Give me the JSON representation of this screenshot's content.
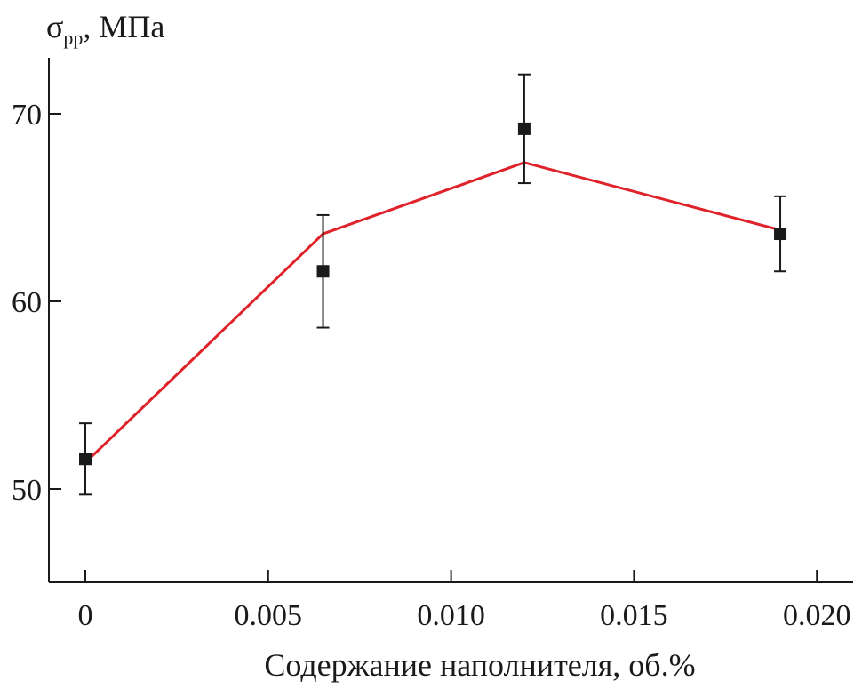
{
  "chart_data": {
    "type": "scatter",
    "ylabel_main": "σ",
    "ylabel_sub": "рр",
    "ylabel_unit": ", МПа",
    "xlabel": "Содержание наполнителя, об.%",
    "xlim": [
      -0.001,
      0.0205
    ],
    "ylim": [
      45,
      73
    ],
    "x_ticks": [
      0,
      0.005,
      0.01,
      0.015,
      0.02
    ],
    "x_tick_labels": [
      "0",
      "0.005",
      "0.010",
      "0.015",
      "0.020"
    ],
    "y_ticks": [
      50,
      60,
      70
    ],
    "y_tick_labels": [
      "50",
      "60",
      "70"
    ],
    "grid": false,
    "series": [
      {
        "kind": "markers",
        "marker": "square",
        "color": "#1a1a1a",
        "x": [
          0,
          0.0065,
          0.012,
          0.019
        ],
        "y": [
          51.6,
          61.6,
          69.2,
          63.6
        ],
        "err_low": [
          49.7,
          58.6,
          66.3,
          61.6
        ],
        "err_high": [
          53.5,
          64.6,
          72.1,
          65.6
        ]
      },
      {
        "kind": "line",
        "color": "#e0222a",
        "x": [
          0,
          0.0065,
          0.012,
          0.019
        ],
        "y": [
          51.4,
          63.6,
          67.4,
          63.8
        ]
      }
    ]
  }
}
